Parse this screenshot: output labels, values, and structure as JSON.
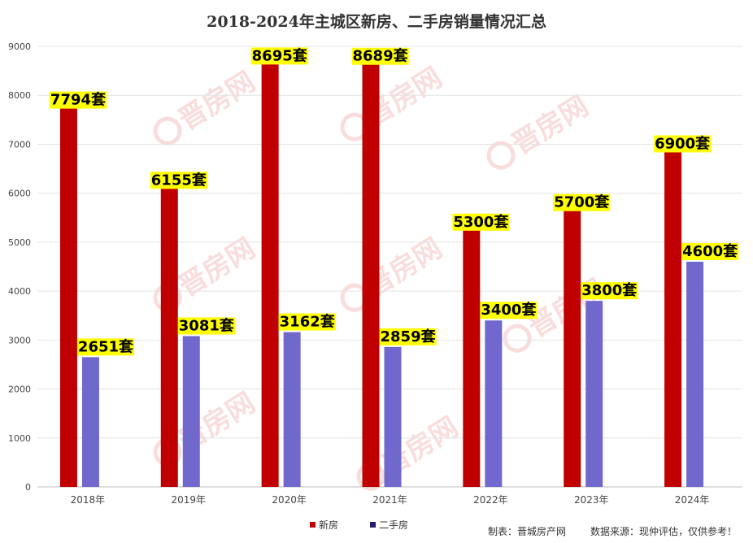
{
  "chart_data": {
    "type": "bar",
    "title": "2018-2024年主城区新房、二手房销量情况汇总",
    "categories": [
      "2018年",
      "2019年",
      "2020年",
      "2021年",
      "2022年",
      "2023年",
      "2024年"
    ],
    "series": [
      {
        "name": "新房",
        "color": "#c00000",
        "values": [
          7794,
          6155,
          8695,
          8689,
          5300,
          5700,
          6900
        ]
      },
      {
        "name": "二手房",
        "color": "#7068cc",
        "values": [
          2651,
          3081,
          3162,
          2859,
          3400,
          3800,
          4600
        ]
      }
    ],
    "data_labels": {
      "new": [
        "7794套",
        "6155套",
        "8695套",
        "8689套",
        "5300套",
        "5700套",
        "6900套"
      ],
      "second": [
        "2651套",
        "3081套",
        "3162套",
        "2859套",
        "3400套",
        "3800套",
        "4600套"
      ]
    },
    "ylim": [
      0,
      9000
    ],
    "yticks": [
      "0",
      "1000",
      "2000",
      "3000",
      "4000",
      "5000",
      "6000",
      "7000",
      "8000",
      "9000"
    ],
    "grid": true,
    "legend_position": "bottom",
    "legend_colors": [
      "#c00000",
      "#1f1f6e"
    ],
    "label_highlight_color": "#ffff00"
  },
  "footer": {
    "maker": "制表：晋城房产网",
    "source": "数据来源：现仲评估，仅供参考！"
  },
  "watermark": "晋房网"
}
